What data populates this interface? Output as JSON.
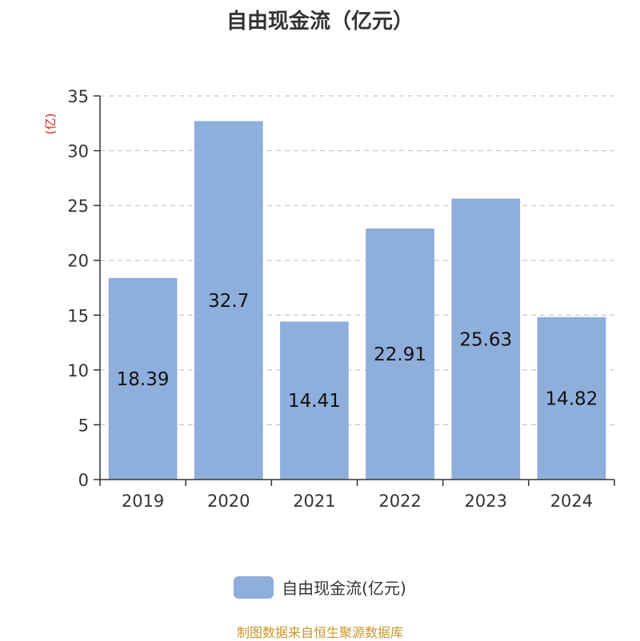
{
  "chart_data": {
    "type": "bar",
    "title": "自由现金流（亿元）",
    "ylabel": "(亿)",
    "categories": [
      "2019",
      "2020",
      "2021",
      "2022",
      "2023",
      "2024"
    ],
    "series": [
      {
        "name": "自由现金流(亿元)",
        "values": [
          18.39,
          32.7,
          14.41,
          22.91,
          25.63,
          14.82
        ]
      }
    ],
    "value_labels": [
      "18.39",
      "32.7",
      "14.41",
      "22.91",
      "25.63",
      "14.82"
    ],
    "ylim": [
      0,
      35
    ],
    "yticks": [
      0,
      5,
      10,
      15,
      20,
      25,
      30,
      35
    ],
    "grid": true,
    "legend_position": "bottom-center",
    "bar_color": "#8eaedb",
    "ylabel_color": "#e02020"
  },
  "footer": {
    "source": "制图数据来自恒生聚源数据库"
  }
}
